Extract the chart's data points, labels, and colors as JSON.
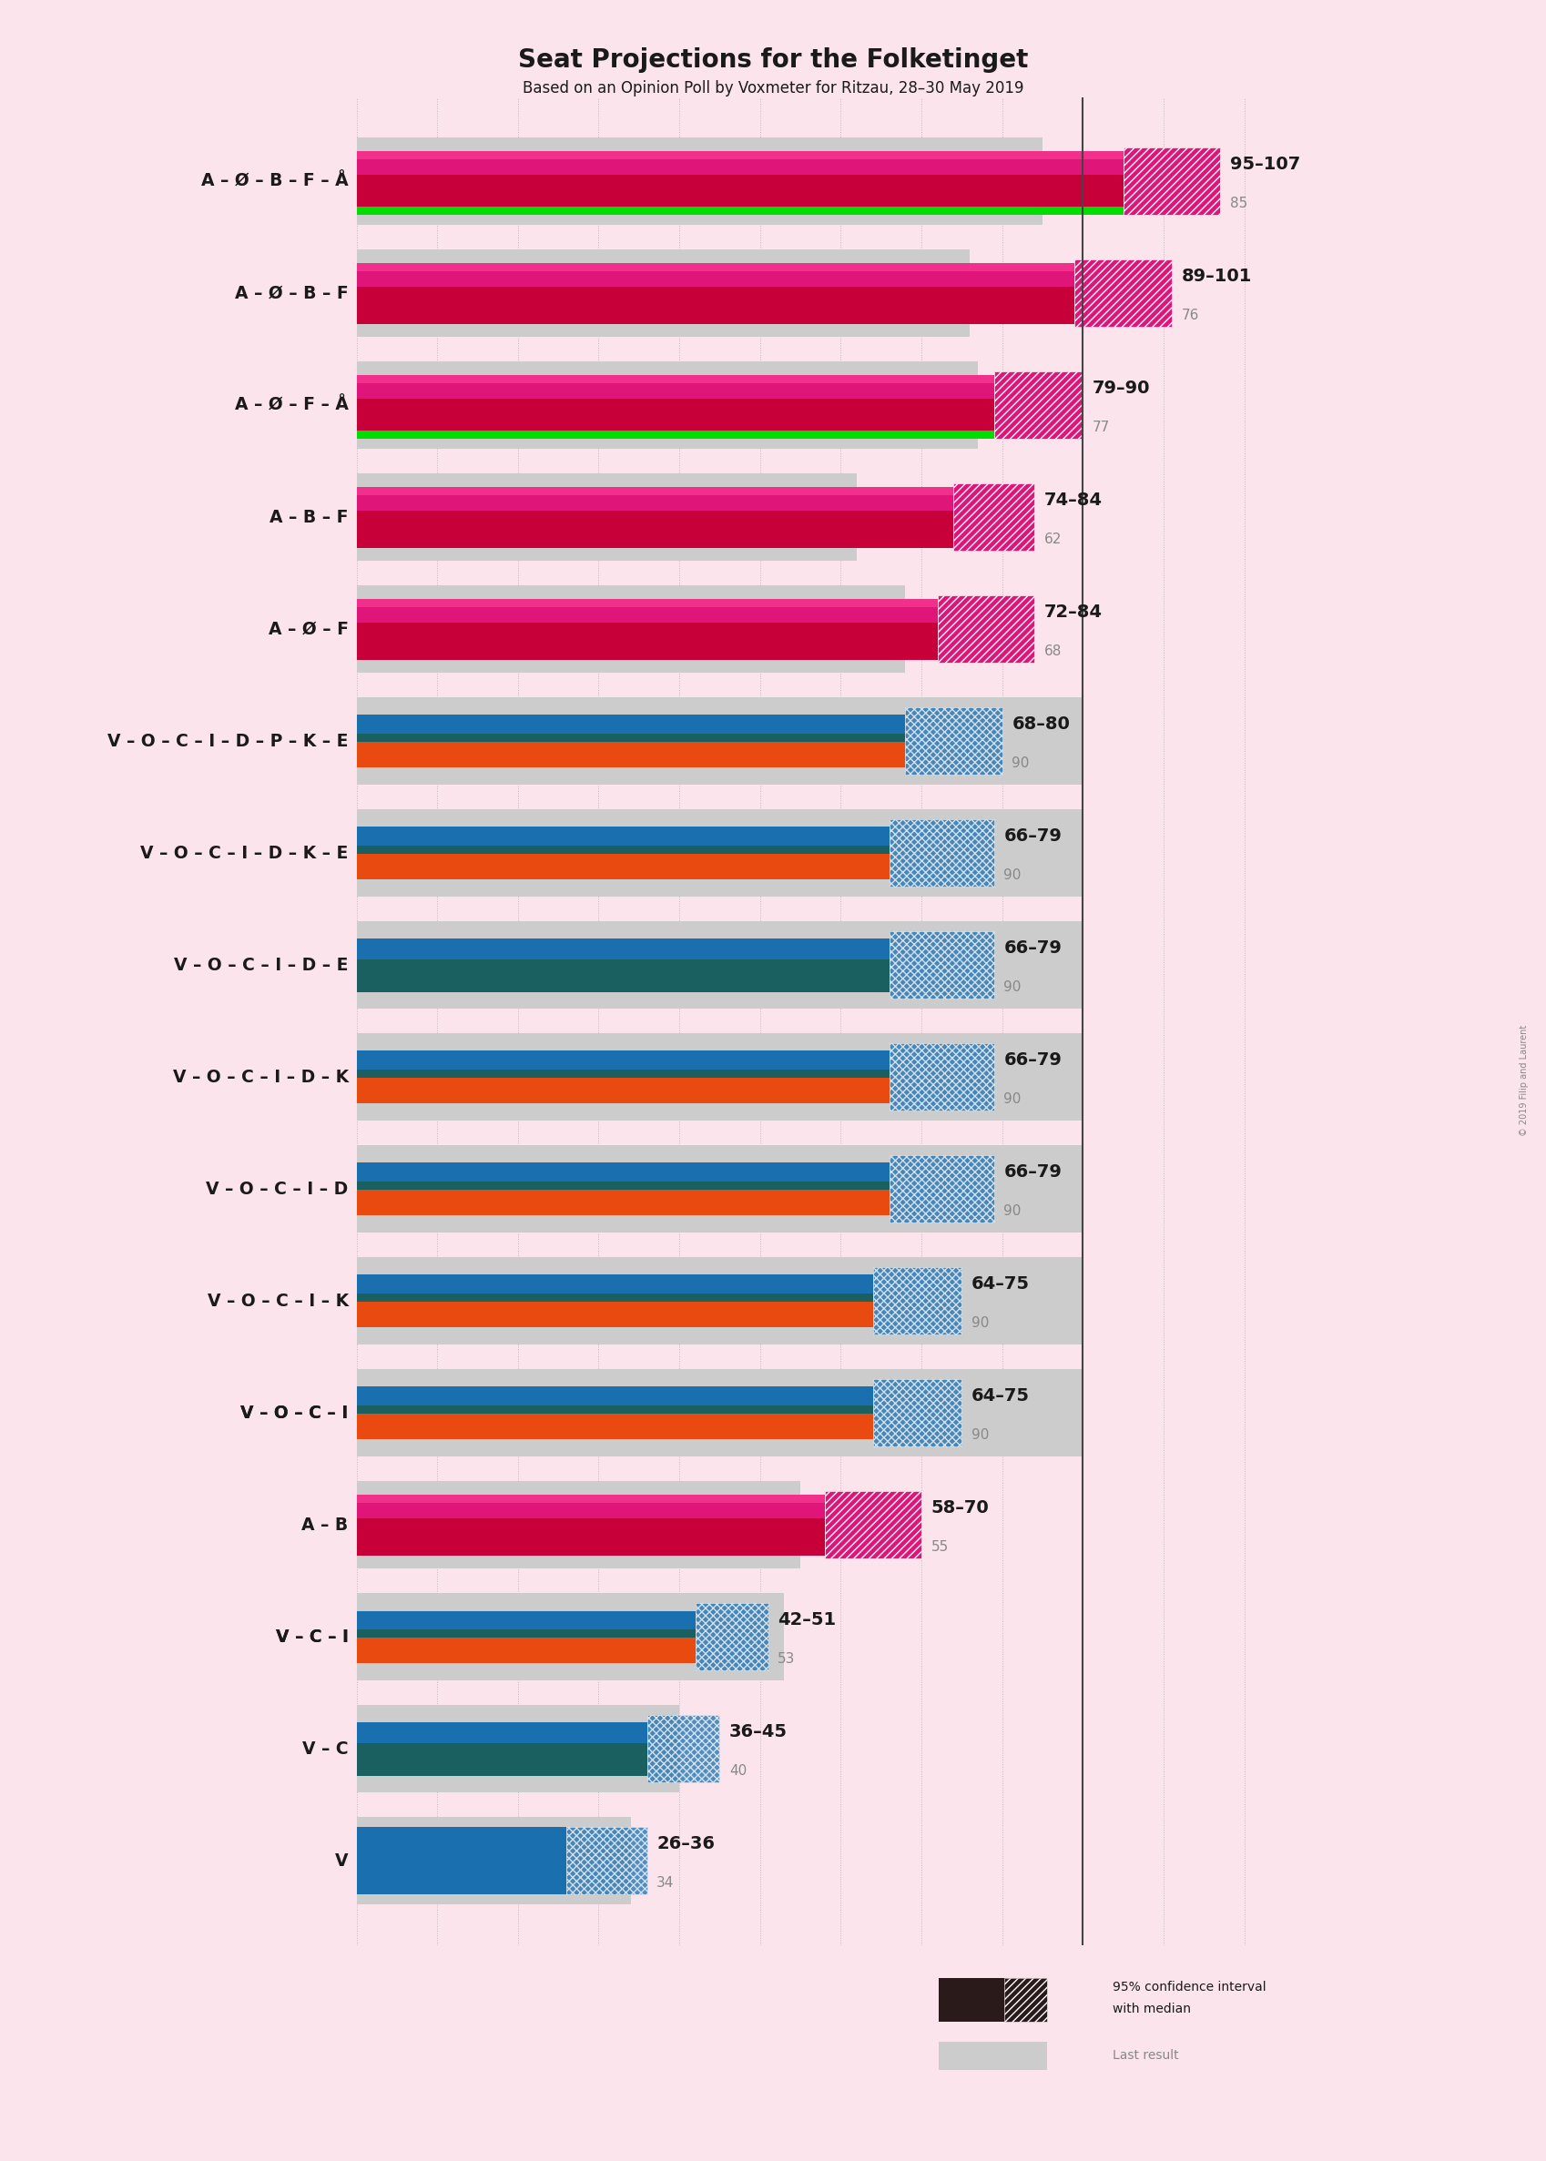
{
  "title": "Seat Projections for the Folketinget",
  "subtitle": "Based on an Opinion Poll by Voxmeter for Ritzau, 28–30 May 2019",
  "background_color": "#fce4ec",
  "coalitions": [
    {
      "label": "A – Ø – B – F – Å",
      "range_lo": 95,
      "range_hi": 107,
      "last": 85,
      "type": "left_green",
      "underline": false
    },
    {
      "label": "A – Ø – B – F",
      "range_lo": 89,
      "range_hi": 101,
      "last": 76,
      "type": "left",
      "underline": false
    },
    {
      "label": "A – Ø – F – Å",
      "range_lo": 79,
      "range_hi": 90,
      "last": 77,
      "type": "left_green2",
      "underline": false
    },
    {
      "label": "A – B – F",
      "range_lo": 74,
      "range_hi": 84,
      "last": 62,
      "type": "left",
      "underline": false
    },
    {
      "label": "A – Ø – F",
      "range_lo": 72,
      "range_hi": 84,
      "last": 68,
      "type": "left",
      "underline": false
    },
    {
      "label": "V – O – C – I – D – P – K – E",
      "range_lo": 68,
      "range_hi": 80,
      "last": 90,
      "type": "right3",
      "underline": false
    },
    {
      "label": "V – O – C – I – D – K – E",
      "range_lo": 66,
      "range_hi": 79,
      "last": 90,
      "type": "right3",
      "underline": false
    },
    {
      "label": "V – O – C – I – D – E",
      "range_lo": 66,
      "range_hi": 79,
      "last": 90,
      "type": "right2",
      "underline": false
    },
    {
      "label": "V – O – C – I – D – K",
      "range_lo": 66,
      "range_hi": 79,
      "last": 90,
      "type": "right3",
      "underline": false
    },
    {
      "label": "V – O – C – I – D",
      "range_lo": 66,
      "range_hi": 79,
      "last": 90,
      "type": "right3",
      "underline": false
    },
    {
      "label": "V – O – C – I – K",
      "range_lo": 64,
      "range_hi": 75,
      "last": 90,
      "type": "right3",
      "underline": false
    },
    {
      "label": "V – O – C – I",
      "range_lo": 64,
      "range_hi": 75,
      "last": 90,
      "type": "right3",
      "underline": true
    },
    {
      "label": "A – B",
      "range_lo": 58,
      "range_hi": 70,
      "last": 55,
      "type": "left_ab",
      "underline": false
    },
    {
      "label": "V – C – I",
      "range_lo": 42,
      "range_hi": 51,
      "last": 53,
      "type": "right3",
      "underline": true
    },
    {
      "label": "V – C",
      "range_lo": 36,
      "range_hi": 45,
      "last": 40,
      "type": "right2",
      "underline": false
    },
    {
      "label": "V",
      "range_lo": 26,
      "range_hi": 36,
      "last": 34,
      "type": "right1",
      "underline": false
    }
  ],
  "majority_line": 90,
  "x_max": 113,
  "colors": {
    "magenta": "#e0157a",
    "crimson": "#c8003a",
    "pink_top": "#f0308a",
    "green": "#00dd00",
    "blue": "#1a6faf",
    "teal": "#1a6060",
    "orange": "#e84a10",
    "grey": "#bbbbbb",
    "grey_bg": "#cccccc",
    "dark": "#1a1a1a",
    "label_grey": "#888888"
  }
}
